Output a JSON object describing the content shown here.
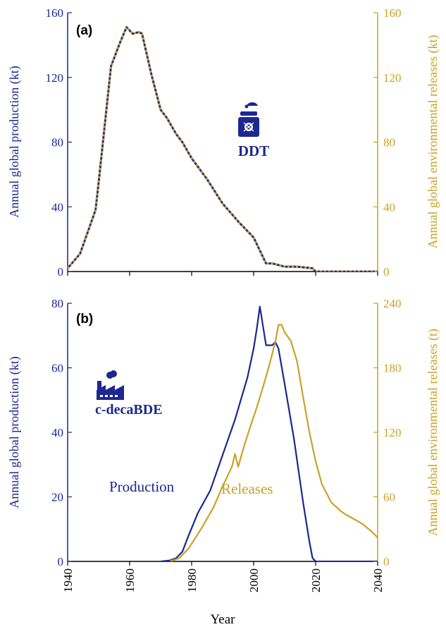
{
  "colors": {
    "production": "#1c2791",
    "releases": "#c9a227",
    "axis_left": "#1c2791",
    "axis_right": "#c9a227"
  },
  "xlabel": "Year",
  "x_ticks": [
    "1940",
    "1960",
    "1980",
    "2000",
    "2020",
    "2040"
  ],
  "panels": [
    {
      "label": "(a)",
      "annotation": "DDT",
      "icon": "spray-can-icon",
      "ylabel_left": "Annual global production (kt)",
      "ylabel_right": "Annual global environmental releases (kt)",
      "y_ticks_left": [
        "0",
        "40",
        "80",
        "120",
        "160"
      ],
      "y_ticks_right": [
        "0",
        "40",
        "80",
        "120",
        "160"
      ]
    },
    {
      "label": "(b)",
      "annotation": "c-decaBDE",
      "icon": "factory-icon",
      "ylabel_left": "Annual global production (kt)",
      "ylabel_right": "Annual global environmental releases (t)",
      "y_ticks_left": [
        "0",
        "20",
        "40",
        "60",
        "80"
      ],
      "y_ticks_right": [
        "0",
        "60",
        "120",
        "180",
        "240"
      ],
      "series_labels": {
        "production": "Production",
        "releases": "Releases"
      }
    }
  ],
  "chart_data": [
    {
      "type": "line",
      "title": "(a)",
      "xlabel": "",
      "ylabel": "Annual global production (kt)",
      "y2label": "Annual global environmental releases (kt)",
      "xlim": [
        1940,
        2040
      ],
      "ylim": [
        0,
        160
      ],
      "y2lim": [
        0,
        160
      ],
      "series": [
        {
          "axis": "left",
          "style": "production",
          "x": [
            1940,
            1944,
            1949,
            1950,
            1954,
            1957,
            1959,
            1961,
            1963,
            1964,
            1967,
            1970,
            1972,
            1975,
            1977,
            1980,
            1985,
            1990,
            1995,
            2000,
            2004,
            2006,
            2010,
            2014,
            2019,
            2020,
            2030,
            2040
          ],
          "y": [
            2,
            11,
            38,
            55,
            127,
            142,
            151,
            147,
            148,
            147,
            122,
            100,
            95,
            85,
            80,
            70,
            57,
            42,
            31,
            21,
            5,
            5,
            3,
            3,
            2,
            0,
            0,
            0
          ]
        },
        {
          "axis": "right",
          "style": "releases",
          "x": [
            1940,
            1944,
            1949,
            1950,
            1954,
            1957,
            1959,
            1961,
            1963,
            1964,
            1967,
            1970,
            1972,
            1975,
            1977,
            1980,
            1985,
            1990,
            1995,
            2000,
            2004,
            2006,
            2010,
            2014,
            2019,
            2020,
            2030,
            2040
          ],
          "y": [
            2,
            11,
            38,
            55,
            127,
            142,
            151,
            147,
            148,
            147,
            122,
            100,
            95,
            85,
            80,
            70,
            57,
            42,
            31,
            21,
            5,
            5,
            3,
            3,
            2,
            0,
            0,
            0
          ]
        }
      ]
    },
    {
      "type": "line",
      "title": "(b)",
      "xlabel": "Year",
      "ylabel": "Annual global production (kt)",
      "y2label": "Annual global environmental releases (t)",
      "xlim": [
        1940,
        2040
      ],
      "ylim": [
        0,
        80
      ],
      "y2lim": [
        0,
        240
      ],
      "series": [
        {
          "name": "Production",
          "axis": "left",
          "style": "production",
          "x": [
            1970,
            1973,
            1975,
            1977,
            1979,
            1982,
            1986,
            1990,
            1994,
            1998,
            2000,
            2001,
            2002,
            2003,
            2004,
            2006,
            2007,
            2008,
            2010,
            2013,
            2016,
            2018,
            2019,
            2020,
            2030,
            2040
          ],
          "y": [
            0,
            0.3,
            1,
            3,
            8,
            15,
            22,
            33,
            44,
            57,
            66,
            72,
            79,
            73,
            67,
            67,
            68,
            66,
            55,
            38,
            18,
            6,
            1,
            0,
            0,
            0
          ]
        },
        {
          "name": "Releases",
          "axis": "right",
          "style": "releases",
          "x": [
            1973,
            1976,
            1979,
            1983,
            1987,
            1990,
            1993,
            1994,
            1995,
            1997,
            1999,
            2001,
            2003,
            2005,
            2007,
            2008,
            2009,
            2010,
            2012,
            2014,
            2016,
            2018,
            2020,
            2022,
            2025,
            2028,
            2030,
            2032,
            2035,
            2038,
            2040
          ],
          "y": [
            0,
            3,
            12,
            30,
            50,
            70,
            88,
            100,
            88,
            108,
            126,
            143,
            162,
            182,
            204,
            220,
            220,
            213,
            205,
            186,
            152,
            120,
            93,
            72,
            55,
            47,
            43,
            40,
            35,
            28,
            22
          ]
        }
      ]
    }
  ]
}
